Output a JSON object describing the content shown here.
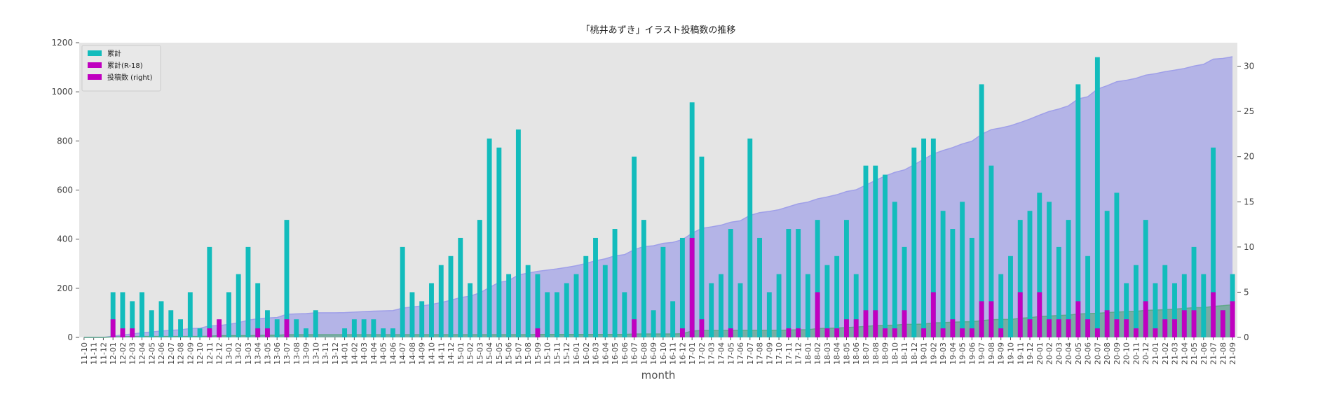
{
  "chart_data": {
    "type": "bar",
    "title": "「桃井あずき」イラスト投稿数の推移",
    "xlabel": "month",
    "categories": [
      "11-10",
      "11-11",
      "11-12",
      "12-01",
      "12-02",
      "12-03",
      "12-04",
      "12-05",
      "12-06",
      "12-07",
      "12-08",
      "12-09",
      "12-10",
      "12-11",
      "12-12",
      "13-01",
      "13-02",
      "13-03",
      "13-04",
      "13-05",
      "13-06",
      "13-07",
      "13-08",
      "13-09",
      "13-10",
      "13-11",
      "13-12",
      "14-01",
      "14-02",
      "14-03",
      "14-04",
      "14-05",
      "14-06",
      "14-07",
      "14-08",
      "14-09",
      "14-10",
      "14-11",
      "14-12",
      "15-01",
      "15-02",
      "15-03",
      "15-04",
      "15-05",
      "15-06",
      "15-07",
      "15-08",
      "15-09",
      "15-10",
      "15-11",
      "15-12",
      "16-01",
      "16-02",
      "16-03",
      "16-04",
      "16-05",
      "16-06",
      "16-07",
      "16-08",
      "16-09",
      "16-10",
      "16-11",
      "16-12",
      "17-01",
      "17-02",
      "17-03",
      "17-04",
      "17-05",
      "17-06",
      "17-07",
      "17-08",
      "17-09",
      "17-10",
      "17-11",
      "17-12",
      "18-01",
      "18-02",
      "18-03",
      "18-04",
      "18-05",
      "18-06",
      "18-07",
      "18-08",
      "18-09",
      "18-10",
      "18-11",
      "18-12",
      "19-01",
      "19-02",
      "19-03",
      "19-04",
      "19-05",
      "19-06",
      "19-07",
      "19-08",
      "19-09",
      "19-10",
      "19-11",
      "19-12",
      "20-01",
      "20-02",
      "20-03",
      "20-04",
      "20-05",
      "20-06",
      "20-07",
      "20-08",
      "20-09",
      "20-10",
      "20-11",
      "20-12",
      "21-01",
      "21-02",
      "21-03",
      "21-04",
      "21-05",
      "21-06",
      "21-07",
      "21-08",
      "21-09"
    ],
    "series": [
      {
        "type": "area",
        "axis": "y",
        "color": "#9f9fe8",
        "values": [
          0,
          0,
          0,
          5,
          10,
          14,
          19,
          22,
          26,
          29,
          31,
          36,
          37,
          47,
          48,
          53,
          60,
          70,
          76,
          79,
          81,
          94,
          96,
          97,
          100,
          100,
          100,
          101,
          103,
          105,
          107,
          108,
          109,
          119,
          124,
          128,
          134,
          142,
          151,
          162,
          168,
          181,
          203,
          224,
          231,
          254,
          262,
          269,
          274,
          279,
          285,
          292,
          301,
          312,
          320,
          332,
          337,
          357,
          370,
          373,
          383,
          387,
          398,
          424,
          444,
          450,
          457,
          469,
          475,
          497,
          508,
          513,
          520,
          532,
          544,
          551,
          564,
          572,
          581,
          594,
          601,
          620,
          639,
          657,
          672,
          682,
          703,
          725,
          747,
          761,
          773,
          788,
          799,
          827,
          846,
          853,
          862,
          875,
          889,
          905,
          920,
          930,
          943,
          971,
          980,
          1011,
          1025,
          1041,
          1047,
          1055,
          1068,
          1074,
          1082,
          1088,
          1095,
          1105,
          1112,
          1133,
          1136,
          1143
        ]
      },
      {
        "type": "area",
        "axis": "y",
        "color": "#5fa888",
        "values": [
          0,
          0,
          0,
          2,
          3,
          4,
          4,
          4,
          4,
          4,
          4,
          4,
          4,
          5,
          7,
          7,
          7,
          7,
          8,
          9,
          9,
          11,
          11,
          11,
          11,
          11,
          11,
          11,
          11,
          11,
          11,
          11,
          11,
          11,
          11,
          11,
          11,
          11,
          11,
          11,
          11,
          11,
          11,
          11,
          11,
          11,
          11,
          12,
          12,
          12,
          12,
          12,
          12,
          12,
          12,
          12,
          12,
          14,
          14,
          14,
          14,
          14,
          15,
          26,
          28,
          28,
          28,
          29,
          29,
          29,
          29,
          29,
          29,
          30,
          31,
          31,
          36,
          37,
          38,
          40,
          42,
          45,
          48,
          49,
          50,
          53,
          53,
          54,
          59,
          60,
          62,
          63,
          64,
          68,
          72,
          73,
          73,
          78,
          80,
          85,
          87,
          89,
          91,
          95,
          97,
          98,
          101,
          103,
          105,
          106,
          110,
          111,
          113,
          115,
          118,
          121,
          121,
          126,
          129,
          133
        ]
      },
      {
        "type": "bar",
        "axis": "y2",
        "color": "#12bcbc",
        "values": [
          0,
          0,
          0,
          5,
          5,
          4,
          5,
          3,
          4,
          3,
          2,
          5,
          1,
          10,
          1,
          5,
          7,
          10,
          6,
          3,
          2,
          13,
          2,
          1,
          3,
          0,
          0,
          1,
          2,
          2,
          2,
          1,
          1,
          10,
          5,
          4,
          6,
          8,
          9,
          11,
          6,
          13,
          22,
          21,
          7,
          23,
          8,
          7,
          5,
          5,
          6,
          7,
          9,
          11,
          8,
          12,
          5,
          20,
          13,
          3,
          10,
          4,
          11,
          26,
          20,
          6,
          7,
          12,
          6,
          22,
          11,
          5,
          7,
          12,
          12,
          7,
          13,
          8,
          9,
          13,
          7,
          19,
          19,
          18,
          15,
          10,
          21,
          22,
          22,
          14,
          12,
          15,
          11,
          28,
          19,
          7,
          9,
          13,
          14,
          16,
          15,
          10,
          13,
          28,
          9,
          31,
          14,
          16,
          6,
          8,
          13,
          6,
          8,
          6,
          7,
          10,
          7,
          21,
          3,
          7
        ]
      },
      {
        "type": "bar",
        "axis": "y2",
        "color": "#c000c0",
        "values": [
          0,
          0,
          0,
          2,
          1,
          1,
          0,
          0,
          0,
          0,
          0,
          0,
          0,
          1,
          2,
          0,
          0,
          0,
          1,
          1,
          0,
          2,
          0,
          0,
          0,
          0,
          0,
          0,
          0,
          0,
          0,
          0,
          0,
          0,
          0,
          0,
          0,
          0,
          0,
          0,
          0,
          0,
          0,
          0,
          0,
          0,
          0,
          1,
          0,
          0,
          0,
          0,
          0,
          0,
          0,
          0,
          0,
          2,
          0,
          0,
          0,
          0,
          1,
          11,
          2,
          0,
          0,
          1,
          0,
          0,
          0,
          0,
          0,
          1,
          1,
          0,
          5,
          1,
          1,
          2,
          2,
          3,
          3,
          1,
          1,
          3,
          0,
          1,
          5,
          1,
          2,
          1,
          1,
          4,
          4,
          1,
          0,
          5,
          2,
          5,
          2,
          2,
          2,
          4,
          2,
          1,
          3,
          2,
          2,
          1,
          4,
          1,
          2,
          2,
          3,
          3,
          0,
          5,
          3,
          4
        ]
      }
    ],
    "ylim": [
      0,
      1200
    ],
    "yticks": [
      0,
      200,
      400,
      600,
      800,
      1000,
      1200
    ],
    "y2lim": [
      0,
      32.6
    ],
    "y2ticks": [
      0,
      5,
      10,
      15,
      20,
      25,
      30
    ],
    "legend": {
      "position": "upper left",
      "entries": [
        {
          "label": "累計",
          "color": "#12bcbc"
        },
        {
          "label": "累計(R-18)",
          "color": "#bf00bf"
        },
        {
          "label": "投稿数 (right)",
          "color": "#c000c0"
        }
      ]
    }
  }
}
